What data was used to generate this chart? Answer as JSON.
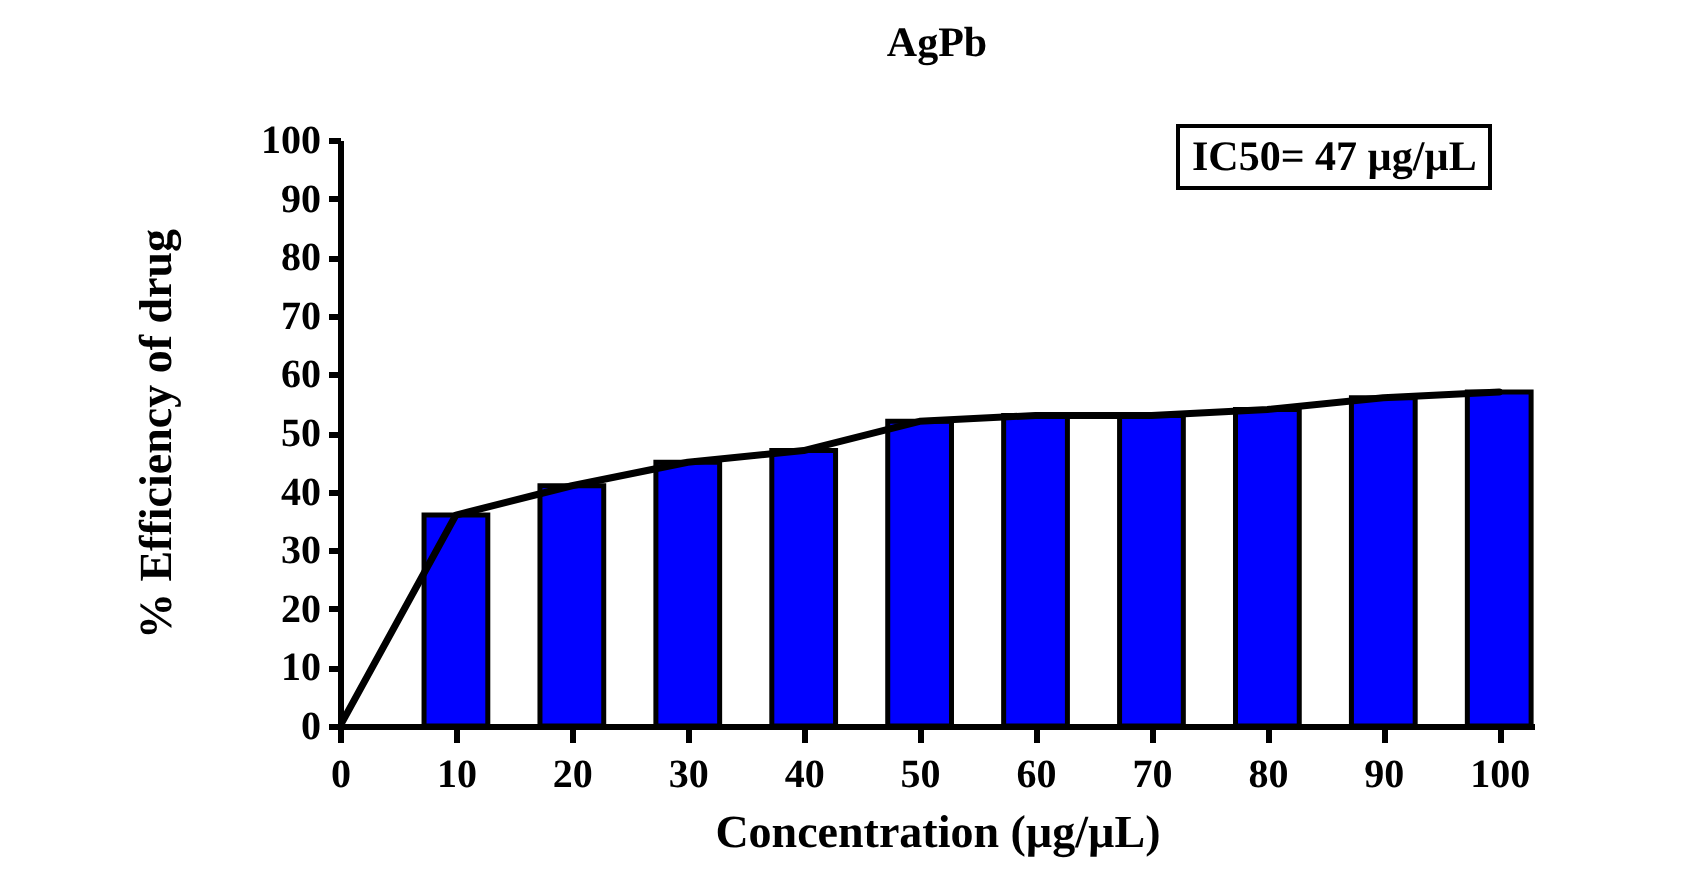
{
  "chart_data": {
    "type": "bar",
    "title": "AgPb",
    "xlabel": "Concentration (µg/µL)",
    "ylabel": "% Efficiency of drug",
    "x": [
      10,
      20,
      30,
      40,
      50,
      60,
      70,
      80,
      90,
      100
    ],
    "series": [
      {
        "type": "bar",
        "color": "#0000ff",
        "values": [
          36,
          41,
          45,
          47,
          52,
          53,
          53,
          54,
          56,
          57
        ]
      },
      {
        "type": "line",
        "color": "#000000",
        "x": [
          0,
          10,
          20,
          30,
          40,
          50,
          60,
          70,
          80,
          90,
          100
        ],
        "values": [
          0,
          36,
          41,
          45,
          47,
          52,
          53,
          53,
          54,
          56,
          57
        ]
      }
    ],
    "xlim": [
      0,
      103
    ],
    "xticks": [
      0,
      10,
      20,
      30,
      40,
      50,
      60,
      70,
      80,
      90,
      100
    ],
    "ylim": [
      0,
      100
    ],
    "yticks": [
      0,
      10,
      20,
      30,
      40,
      50,
      60,
      70,
      80,
      90,
      100
    ],
    "annotations": [
      "IC50= 47 µg/µL"
    ]
  }
}
